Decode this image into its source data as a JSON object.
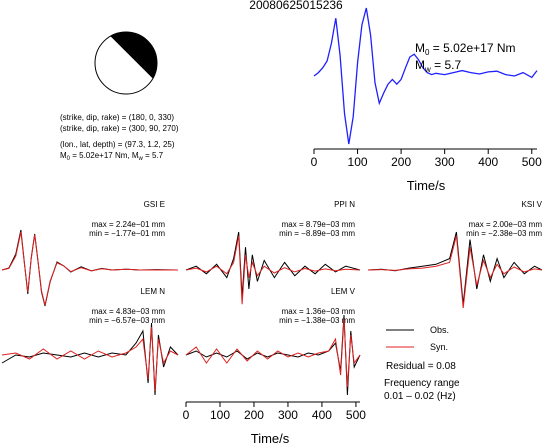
{
  "title": "20080625015236",
  "beachball": {
    "colors": {
      "compressional": "#000000",
      "dilatational": "#ffffff"
    }
  },
  "mechanism": {
    "line1": "(strike, dip, rake) = (180, 0, 330)",
    "line2": "(strike, dip, rake) = (300, 90, 270)",
    "line3": "(lon., lat, depth) = (97.3, 1.2, 25)",
    "line4_m0_prefix": "M",
    "line4_m0_sub": "0",
    "line4_m0_value": " = 5.02e+17 Nm, M",
    "line4_mw_sub": "w",
    "line4_mw_value": " = 5.7"
  },
  "stf": {
    "m0_sym": "M",
    "m0_sub": "0",
    "m0_text": " = 5.02e+17 Nm",
    "mw_sym": "M",
    "mw_sub": "w",
    "mw_text": " = 5.7",
    "xlabel": "Time/s",
    "color": "#2020ff"
  },
  "legend": {
    "obs_label": "Obs.",
    "syn_label": "Syn.",
    "obs_color": "#000000",
    "syn_color": "#e02020",
    "residual": "Residual = 0.08",
    "freq_line1": "Frequency range",
    "freq_line2": "0.01 – 0.02 (Hz)"
  },
  "bottom_xlabel": "Time/s",
  "traces": [
    {
      "name": "GSI E",
      "max": "max = 2.24e−01 mm",
      "min": "min = −1.77e−01 mm"
    },
    {
      "name": "PPI N",
      "max": "max = 8.79e−03 mm",
      "min": "min = −8.89e−03 mm"
    },
    {
      "name": "KSI V",
      "max": "max = 2.00e−03 mm",
      "min": "min = −2.38e−03 mm"
    },
    {
      "name": "LEM N",
      "max": "max = 4.83e−03 mm",
      "min": "min = −6.57e−03 mm"
    },
    {
      "name": "LEM V",
      "max": "max = 1.36e−03 mm",
      "min": "min = −1.38e−03 mm"
    }
  ],
  "chart_data": [
    {
      "type": "line",
      "title": "",
      "xlabel": "Time/s",
      "ylabel": "",
      "xlim": [
        0,
        512
      ],
      "xticks": [
        0,
        100,
        200,
        300,
        400,
        500
      ],
      "series": [
        {
          "x": [
            0,
            10,
            20,
            30,
            40,
            50,
            60,
            70,
            80,
            90,
            100,
            110,
            120,
            130,
            140,
            150,
            160,
            170,
            180,
            190,
            200,
            210,
            220,
            230,
            240,
            250,
            260,
            270,
            280,
            290,
            300,
            320,
            340,
            360,
            380,
            400,
            420,
            440,
            460,
            480,
            500,
            512
          ],
          "y": [
            0.0,
            0.05,
            0.12,
            0.22,
            0.48,
            0.85,
            0.3,
            -0.55,
            -1.0,
            -0.6,
            0.2,
            0.75,
            1.0,
            0.6,
            -0.1,
            -0.4,
            -0.25,
            -0.12,
            -0.05,
            -0.12,
            -0.05,
            0.12,
            0.28,
            0.32,
            0.24,
            0.12,
            0.05,
            0.02,
            0.04,
            0.03,
            0.02,
            0.05,
            0.08,
            0.05,
            0.03,
            0.06,
            0.07,
            0.02,
            0.0,
            0.05,
            -0.02,
            0.08
          ]
        }
      ]
    },
    {
      "type": "line",
      "title": "GSI E",
      "xlim": [
        0,
        512
      ],
      "series": [
        {
          "name": "Obs.",
          "x": [
            0,
            20,
            40,
            55,
            65,
            75,
            85,
            95,
            105,
            115,
            125,
            140,
            160,
            180,
            200,
            230,
            260,
            290,
            320,
            360,
            400,
            450,
            512
          ],
          "y": [
            0.0,
            0.05,
            0.4,
            1.0,
            0.2,
            -0.6,
            0.3,
            0.9,
            0.2,
            -0.55,
            -0.9,
            -0.3,
            0.2,
            0.1,
            -0.05,
            0.08,
            -0.02,
            0.04,
            0.0,
            0.02,
            0.0,
            0.01,
            0.0
          ]
        },
        {
          "name": "Syn.",
          "x": [
            0,
            20,
            40,
            55,
            65,
            75,
            85,
            95,
            105,
            115,
            125,
            140,
            160,
            180,
            200,
            230,
            260,
            290,
            320,
            360,
            400,
            450,
            512
          ],
          "y": [
            0.0,
            0.04,
            0.35,
            0.95,
            0.18,
            -0.55,
            0.28,
            0.88,
            0.2,
            -0.52,
            -0.88,
            -0.28,
            0.18,
            0.1,
            -0.04,
            0.06,
            -0.02,
            0.03,
            0.0,
            0.02,
            0.0,
            0.0,
            0.0
          ]
        }
      ]
    },
    {
      "type": "line",
      "title": "PPI N",
      "xlim": [
        0,
        512
      ],
      "series": [
        {
          "name": "Obs.",
          "x": [
            0,
            30,
            60,
            90,
            120,
            140,
            155,
            165,
            175,
            185,
            195,
            210,
            230,
            260,
            290,
            320,
            350,
            380,
            410,
            440,
            470,
            512
          ],
          "y": [
            0.0,
            0.1,
            -0.1,
            0.15,
            -0.2,
            0.3,
            1.0,
            -0.7,
            0.6,
            -0.5,
            0.4,
            -0.3,
            0.25,
            -0.2,
            0.2,
            -0.15,
            0.1,
            -0.1,
            0.15,
            -0.05,
            0.1,
            0.0
          ]
        },
        {
          "name": "Syn.",
          "x": [
            0,
            30,
            60,
            90,
            120,
            140,
            155,
            165,
            175,
            185,
            195,
            210,
            230,
            260,
            290,
            320,
            350,
            380,
            410,
            440,
            470,
            512
          ],
          "y": [
            0.0,
            0.05,
            -0.05,
            0.1,
            -0.1,
            0.2,
            0.9,
            -0.9,
            0.4,
            -0.2,
            0.2,
            -0.15,
            0.1,
            -0.08,
            0.06,
            -0.05,
            0.04,
            -0.03,
            0.03,
            -0.02,
            0.02,
            0.0
          ]
        }
      ]
    },
    {
      "type": "line",
      "title": "KSI V",
      "xlim": [
        0,
        512
      ],
      "series": [
        {
          "name": "Obs.",
          "x": [
            0,
            40,
            80,
            120,
            160,
            200,
            240,
            260,
            280,
            300,
            320,
            340,
            360,
            380,
            400,
            430,
            460,
            490,
            512
          ],
          "y": [
            0.0,
            0.02,
            -0.02,
            0.05,
            0.1,
            0.15,
            0.3,
            1.0,
            -0.9,
            0.8,
            -0.5,
            0.4,
            -0.3,
            0.3,
            -0.2,
            0.2,
            -0.1,
            0.1,
            0.0
          ]
        },
        {
          "name": "Syn.",
          "x": [
            0,
            40,
            80,
            120,
            160,
            200,
            240,
            260,
            280,
            300,
            320,
            340,
            360,
            380,
            400,
            430,
            460,
            490,
            512
          ],
          "y": [
            0.0,
            0.01,
            -0.01,
            0.03,
            0.05,
            0.1,
            0.2,
            0.9,
            -1.0,
            0.6,
            -0.4,
            0.25,
            -0.2,
            0.15,
            -0.1,
            0.08,
            -0.05,
            0.03,
            0.0
          ]
        }
      ]
    },
    {
      "type": "line",
      "title": "LEM N",
      "xlim": [
        0,
        512
      ],
      "series": [
        {
          "name": "Obs.",
          "x": [
            0,
            40,
            80,
            120,
            160,
            200,
            240,
            280,
            320,
            360,
            390,
            410,
            425,
            435,
            445,
            455,
            470,
            490,
            512
          ],
          "y": [
            -0.2,
            0.0,
            -0.05,
            0.05,
            0.0,
            -0.05,
            0.05,
            -0.05,
            0.05,
            0.0,
            0.3,
            0.6,
            -0.7,
            0.8,
            -1.0,
            0.5,
            -0.3,
            0.2,
            0.0
          ]
        },
        {
          "name": "Syn.",
          "x": [
            0,
            40,
            80,
            120,
            160,
            200,
            240,
            280,
            320,
            360,
            390,
            410,
            425,
            435,
            445,
            455,
            470,
            490,
            512
          ],
          "y": [
            0.0,
            0.05,
            -0.1,
            0.15,
            -0.1,
            0.1,
            -0.1,
            0.1,
            -0.05,
            0.05,
            0.2,
            0.4,
            -0.6,
            0.7,
            -0.9,
            0.4,
            -0.2,
            0.1,
            0.0
          ]
        }
      ]
    },
    {
      "type": "line",
      "title": "LEM V",
      "xlim": [
        0,
        512
      ],
      "xlabel": "Time/s",
      "xticks": [
        0,
        100,
        200,
        300,
        400,
        500
      ],
      "series": [
        {
          "name": "Obs.",
          "x": [
            0,
            30,
            60,
            90,
            120,
            150,
            180,
            210,
            240,
            270,
            300,
            330,
            360,
            390,
            420,
            440,
            455,
            465,
            475,
            485,
            495,
            512
          ],
          "y": [
            0.0,
            0.1,
            -0.05,
            0.05,
            -0.05,
            0.1,
            -0.1,
            0.05,
            -0.05,
            0.05,
            0.0,
            -0.05,
            0.05,
            0.0,
            0.1,
            0.3,
            -0.4,
            1.0,
            -1.0,
            0.6,
            -0.3,
            0.0
          ]
        },
        {
          "name": "Syn.",
          "x": [
            0,
            30,
            60,
            90,
            120,
            150,
            180,
            210,
            240,
            270,
            300,
            330,
            360,
            390,
            420,
            440,
            455,
            465,
            475,
            485,
            495,
            512
          ],
          "y": [
            0.0,
            0.2,
            -0.2,
            0.15,
            -0.2,
            0.15,
            -0.15,
            0.1,
            -0.1,
            0.1,
            -0.05,
            0.05,
            -0.05,
            0.05,
            0.1,
            0.4,
            -0.5,
            0.9,
            -0.8,
            0.5,
            -0.2,
            0.0
          ]
        }
      ]
    }
  ]
}
